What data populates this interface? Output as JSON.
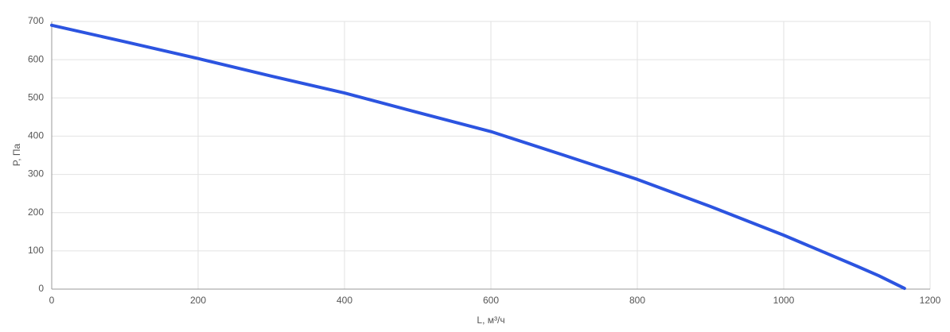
{
  "chart_data": {
    "type": "line",
    "x_label": "L, м³/ч",
    "y_label": "P, Па",
    "series": [
      {
        "color": "#2c54e0",
        "x": [
          0,
          100,
          200,
          300,
          400,
          500,
          600,
          700,
          800,
          900,
          1000,
          1100,
          1130,
          1165
        ],
        "values": [
          690,
          647,
          603,
          557,
          513,
          462,
          412,
          350,
          287,
          216,
          141,
          60,
          35,
          2
        ]
      }
    ],
    "xlim": [
      0,
      1200
    ],
    "xticks": [
      0,
      200,
      400,
      600,
      800,
      1000,
      1200
    ],
    "ylim": [
      0,
      700
    ],
    "yticks": [
      0,
      100,
      200,
      300,
      400,
      500,
      600,
      700
    ],
    "grid": true
  }
}
